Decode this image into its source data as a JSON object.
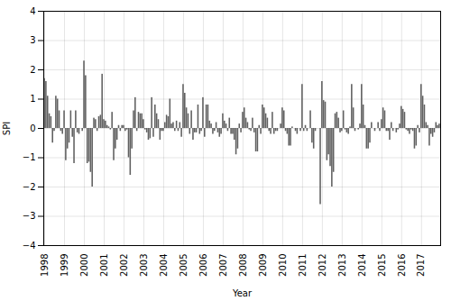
{
  "chart_data": {
    "type": "bar",
    "xlabel": "Year",
    "ylabel": "SPI",
    "categories": [
      "1998",
      null,
      null,
      null,
      null,
      null,
      null,
      null,
      null,
      null,
      null,
      null,
      "1999",
      null,
      null,
      null,
      null,
      null,
      null,
      null,
      null,
      null,
      null,
      null,
      "2000",
      null,
      null,
      null,
      null,
      null,
      null,
      null,
      null,
      null,
      null,
      null,
      "2001",
      null,
      null,
      null,
      null,
      null,
      null,
      null,
      null,
      null,
      null,
      null,
      "2002",
      null,
      null,
      null,
      null,
      null,
      null,
      null,
      null,
      null,
      null,
      null,
      "2003",
      null,
      null,
      null,
      null,
      null,
      null,
      null,
      null,
      null,
      null,
      null,
      "2004",
      null,
      null,
      null,
      null,
      null,
      null,
      null,
      null,
      null,
      null,
      null,
      "2005",
      null,
      null,
      null,
      null,
      null,
      null,
      null,
      null,
      null,
      null,
      null,
      "2006",
      null,
      null,
      null,
      null,
      null,
      null,
      null,
      null,
      null,
      null,
      null,
      "2007",
      null,
      null,
      null,
      null,
      null,
      null,
      null,
      null,
      null,
      null,
      null,
      "2008",
      null,
      null,
      null,
      null,
      null,
      null,
      null,
      null,
      null,
      null,
      null,
      "2009",
      null,
      null,
      null,
      null,
      null,
      null,
      null,
      null,
      null,
      null,
      null,
      "2010",
      null,
      null,
      null,
      null,
      null,
      null,
      null,
      null,
      null,
      null,
      null,
      "2011",
      null,
      null,
      null,
      null,
      null,
      null,
      null,
      null,
      null,
      null,
      null,
      "2012",
      null,
      null,
      null,
      null,
      null,
      null,
      null,
      null,
      null,
      null,
      null,
      "2013",
      null,
      null,
      null,
      null,
      null,
      null,
      null,
      null,
      null,
      null,
      null,
      "2014",
      null,
      null,
      null,
      null,
      null,
      null,
      null,
      null,
      null,
      null,
      null,
      "2015",
      null,
      null,
      null,
      null,
      null,
      null,
      null,
      null,
      null,
      null,
      null,
      "2016",
      null,
      null,
      null,
      null,
      null,
      null,
      null,
      null,
      null,
      null,
      null,
      "2017",
      null,
      null,
      null,
      null,
      null,
      null,
      null,
      null,
      null,
      null,
      null
    ],
    "values": [
      1.7,
      1.6,
      1.1,
      0.5,
      0.4,
      -0.5,
      -0.1,
      1.1,
      1.0,
      0.6,
      -0.1,
      -0.2,
      0.6,
      -1.1,
      -0.7,
      -0.5,
      0.6,
      -0.3,
      -1.2,
      0.6,
      -0.15,
      -0.2,
      0.0,
      -0.1,
      2.3,
      1.8,
      -1.2,
      -1.15,
      -1.5,
      -2.0,
      0.35,
      0.3,
      -0.1,
      0.4,
      0.45,
      1.85,
      0.3,
      0.25,
      0.1,
      0.05,
      -0.05,
      0.55,
      -1.1,
      -0.7,
      -0.4,
      0.1,
      -0.1,
      0.1,
      0.1,
      -0.1,
      -0.05,
      -1.0,
      -1.6,
      -0.7,
      0.6,
      1.05,
      -0.1,
      0.55,
      0.5,
      0.5,
      0.3,
      -0.05,
      -0.15,
      -0.4,
      -0.35,
      1.05,
      -0.3,
      0.8,
      0.5,
      0.3,
      -0.4,
      -0.1,
      -0.1,
      0.2,
      0.45,
      0.4,
      1.0,
      0.15,
      0.2,
      -0.1,
      0.25,
      -0.1,
      0.2,
      -0.3,
      1.5,
      1.2,
      0.7,
      0.5,
      -0.2,
      0.6,
      -0.4,
      -0.15,
      -0.15,
      0.8,
      -0.2,
      -0.1,
      1.05,
      -0.3,
      0.8,
      0.8,
      0.25,
      0.15,
      -0.2,
      -0.1,
      0.2,
      -0.15,
      -0.3,
      -0.2,
      0.5,
      0.25,
      0.15,
      -0.1,
      0.35,
      -0.2,
      -0.2,
      -0.4,
      -0.9,
      -0.7,
      0.15,
      -0.15,
      0.55,
      0.7,
      0.35,
      0.2,
      -0.05,
      -0.1,
      0.35,
      -0.15,
      -0.8,
      -0.8,
      0.1,
      -0.2,
      0.8,
      0.7,
      0.5,
      0.35,
      -0.1,
      -0.2,
      0.55,
      -0.2,
      -0.1,
      -0.1,
      0.0,
      0.15,
      0.7,
      0.6,
      -0.1,
      -0.2,
      -0.6,
      -0.6,
      0.05,
      0.0,
      -0.1,
      -0.2,
      0.0,
      -0.1,
      1.5,
      -0.1,
      0.1,
      -0.1,
      0.0,
      0.6,
      -0.5,
      -0.7,
      -0.1,
      0.0,
      0.0,
      -2.6,
      1.6,
      0.95,
      0.9,
      -1.1,
      -0.9,
      -1.3,
      -2.0,
      -1.5,
      0.5,
      0.55,
      0.35,
      -0.15,
      -0.1,
      0.6,
      -0.05,
      -0.15,
      -0.2,
      0.05,
      1.5,
      0.7,
      -0.1,
      0.0,
      -0.05,
      0.15,
      1.5,
      0.8,
      0.1,
      -0.7,
      -0.7,
      -0.5,
      0.2,
      0.0,
      -0.1,
      0.0,
      0.2,
      -0.1,
      0.3,
      0.7,
      0.6,
      -0.1,
      -0.1,
      -0.4,
      0.2,
      -0.1,
      0.0,
      -0.15,
      -0.05,
      0.15,
      0.75,
      0.65,
      0.55,
      -0.05,
      -0.1,
      -0.2,
      -0.05,
      -0.1,
      -0.7,
      -0.6,
      0.1,
      -0.15,
      1.5,
      1.1,
      0.8,
      0.2,
      0.1,
      -0.6,
      -0.2,
      -0.3,
      -0.15,
      0.2,
      0.1,
      0.15
    ],
    "color": "#606060",
    "ylim": [
      -4,
      4
    ],
    "yticks": [
      -4,
      -3,
      -2,
      -1,
      0,
      1,
      2,
      3,
      4
    ],
    "grid": true
  }
}
